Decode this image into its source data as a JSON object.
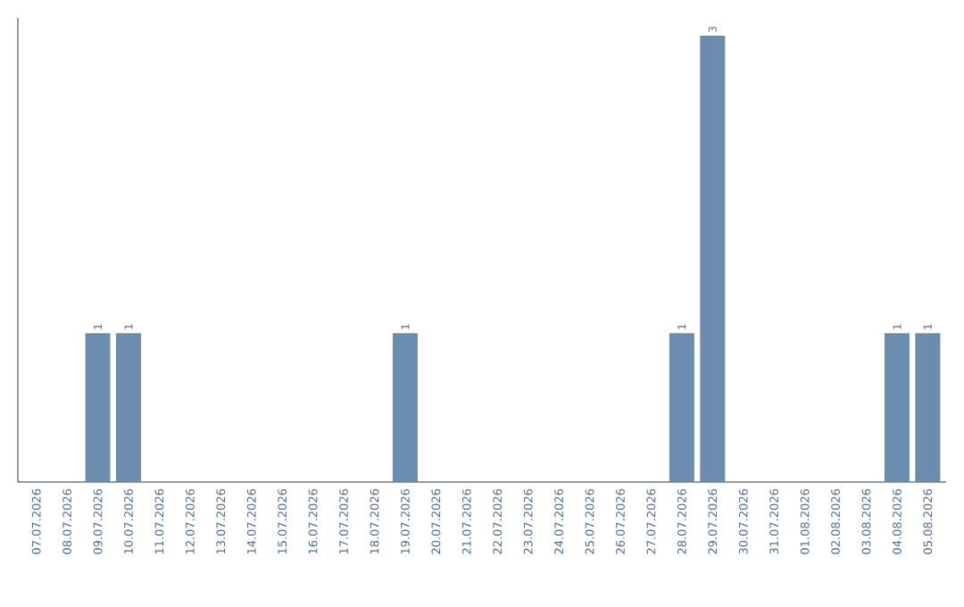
{
  "chart_data": {
    "type": "bar",
    "categories": [
      "07.07.2026",
      "08.07.2026",
      "09.07.2026",
      "10.07.2026",
      "11.07.2026",
      "12.07.2026",
      "13.07.2026",
      "14.07.2026",
      "15.07.2026",
      "16.07.2026",
      "17.07.2026",
      "18.07.2026",
      "19.07.2026",
      "20.07.2026",
      "21.07.2026",
      "22.07.2026",
      "23.07.2026",
      "24.07.2026",
      "25.07.2026",
      "26.07.2026",
      "27.07.2026",
      "28.07.2026",
      "29.07.2026",
      "30.07.2026",
      "31.07.2026",
      "01.08.2026",
      "02.08.2026",
      "03.08.2026",
      "04.08.2026",
      "05.08.2026"
    ],
    "values": [
      0,
      0,
      1,
      1,
      0,
      0,
      0,
      0,
      0,
      0,
      0,
      0,
      1,
      0,
      0,
      0,
      0,
      0,
      0,
      0,
      0,
      1,
      3,
      0,
      0,
      0,
      0,
      0,
      1,
      1
    ],
    "value_labels": [
      null,
      null,
      "1",
      "1",
      null,
      null,
      null,
      null,
      null,
      null,
      null,
      null,
      "1",
      null,
      null,
      null,
      null,
      null,
      null,
      null,
      null,
      "1",
      "3",
      null,
      null,
      null,
      null,
      null,
      "1",
      "1"
    ],
    "color": "#6a8caf"
  }
}
